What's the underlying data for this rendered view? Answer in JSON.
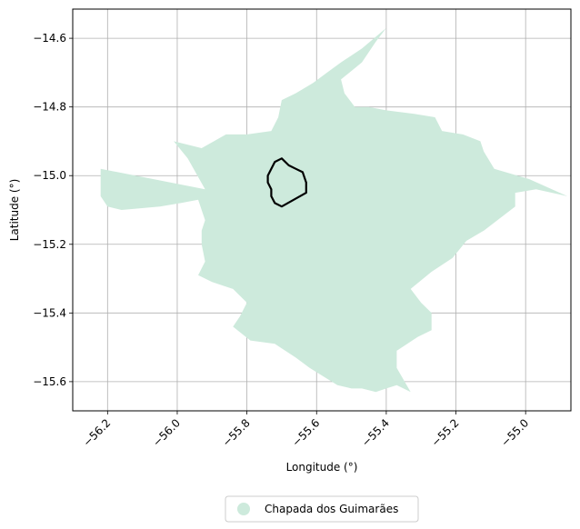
{
  "chart_data": {
    "type": "map",
    "xlabel": "Longitude (°)",
    "ylabel": "Latitude (°)",
    "xlim": [
      -56.3,
      -54.87
    ],
    "ylim": [
      -15.685,
      -14.515
    ],
    "xticks": [
      {
        "value": -56.2,
        "label": "−56.2"
      },
      {
        "value": -56.0,
        "label": "−56.0"
      },
      {
        "value": -55.8,
        "label": "−55.8"
      },
      {
        "value": -55.6,
        "label": "−55.6"
      },
      {
        "value": -55.4,
        "label": "−55.4"
      },
      {
        "value": -55.2,
        "label": "−55.2"
      },
      {
        "value": -55.0,
        "label": "−55.0"
      }
    ],
    "yticks": [
      {
        "value": -14.6,
        "label": "−14.6"
      },
      {
        "value": -14.8,
        "label": "−14.8"
      },
      {
        "value": -15.0,
        "label": "−15.0"
      },
      {
        "value": -15.2,
        "label": "−15.2"
      },
      {
        "value": -15.4,
        "label": "−15.4"
      },
      {
        "value": -15.6,
        "label": "−15.6"
      }
    ],
    "grid": true,
    "legend": {
      "position": "bottom-center",
      "entries": [
        {
          "label": "Chapada dos Guimarães",
          "color": "#cdeadc"
        }
      ]
    },
    "region": {
      "name": "Chapada dos Guimarães",
      "fill": "#cdeadc",
      "outline": [
        [
          -55.4,
          -14.57
        ],
        [
          -55.47,
          -14.63
        ],
        [
          -55.53,
          -14.67
        ],
        [
          -55.57,
          -14.7
        ],
        [
          -55.61,
          -14.73
        ],
        [
          -55.66,
          -14.76
        ],
        [
          -55.7,
          -14.78
        ],
        [
          -55.71,
          -14.83
        ],
        [
          -55.73,
          -14.87
        ],
        [
          -55.8,
          -14.88
        ],
        [
          -55.86,
          -14.88
        ],
        [
          -55.93,
          -14.92
        ],
        [
          -56.01,
          -14.9
        ],
        [
          -55.97,
          -14.95
        ],
        [
          -55.92,
          -15.04
        ],
        [
          -56.22,
          -14.98
        ],
        [
          -56.22,
          -15.06
        ],
        [
          -56.2,
          -15.09
        ],
        [
          -56.16,
          -15.1
        ],
        [
          -56.05,
          -15.09
        ],
        [
          -55.99,
          -15.08
        ],
        [
          -55.94,
          -15.07
        ],
        [
          -55.92,
          -15.13
        ],
        [
          -55.93,
          -15.16
        ],
        [
          -55.93,
          -15.2
        ],
        [
          -55.92,
          -15.25
        ],
        [
          -55.94,
          -15.29
        ],
        [
          -55.9,
          -15.31
        ],
        [
          -55.84,
          -15.33
        ],
        [
          -55.8,
          -15.37
        ],
        [
          -55.82,
          -15.41
        ],
        [
          -55.84,
          -15.44
        ],
        [
          -55.79,
          -15.48
        ],
        [
          -55.72,
          -15.49
        ],
        [
          -55.66,
          -15.53
        ],
        [
          -55.62,
          -15.56
        ],
        [
          -55.54,
          -15.61
        ],
        [
          -55.5,
          -15.62
        ],
        [
          -55.47,
          -15.62
        ],
        [
          -55.43,
          -15.63
        ],
        [
          -55.4,
          -15.62
        ],
        [
          -55.37,
          -15.61
        ],
        [
          -55.33,
          -15.63
        ],
        [
          -55.37,
          -15.56
        ],
        [
          -55.37,
          -15.51
        ],
        [
          -55.31,
          -15.47
        ],
        [
          -55.27,
          -15.45
        ],
        [
          -55.27,
          -15.4
        ],
        [
          -55.3,
          -15.37
        ],
        [
          -55.33,
          -15.33
        ],
        [
          -55.27,
          -15.28
        ],
        [
          -55.21,
          -15.24
        ],
        [
          -55.17,
          -15.19
        ],
        [
          -55.12,
          -15.16
        ],
        [
          -55.03,
          -15.09
        ],
        [
          -55.03,
          -15.05
        ],
        [
          -54.97,
          -15.04
        ],
        [
          -54.88,
          -15.06
        ],
        [
          -54.99,
          -15.01
        ],
        [
          -55.09,
          -14.98
        ],
        [
          -55.12,
          -14.93
        ],
        [
          -55.13,
          -14.9
        ],
        [
          -55.18,
          -14.88
        ],
        [
          -55.24,
          -14.87
        ],
        [
          -55.26,
          -14.83
        ],
        [
          -55.32,
          -14.82
        ],
        [
          -55.4,
          -14.81
        ],
        [
          -55.45,
          -14.8
        ],
        [
          -55.49,
          -14.8
        ],
        [
          -55.52,
          -14.76
        ],
        [
          -55.53,
          -14.72
        ],
        [
          -55.47,
          -14.67
        ],
        [
          -55.43,
          -14.61
        ],
        [
          -55.4,
          -14.57
        ]
      ]
    },
    "highlight": {
      "stroke": "#000000",
      "outline": [
        [
          -55.72,
          -14.96
        ],
        [
          -55.7,
          -14.95
        ],
        [
          -55.68,
          -14.97
        ],
        [
          -55.66,
          -14.98
        ],
        [
          -55.64,
          -14.99
        ],
        [
          -55.63,
          -15.02
        ],
        [
          -55.63,
          -15.05
        ],
        [
          -55.7,
          -15.09
        ],
        [
          -55.72,
          -15.08
        ],
        [
          -55.73,
          -15.06
        ],
        [
          -55.73,
          -15.04
        ],
        [
          -55.74,
          -15.02
        ],
        [
          -55.74,
          -15.0
        ],
        [
          -55.73,
          -14.98
        ],
        [
          -55.72,
          -14.96
        ]
      ]
    }
  }
}
